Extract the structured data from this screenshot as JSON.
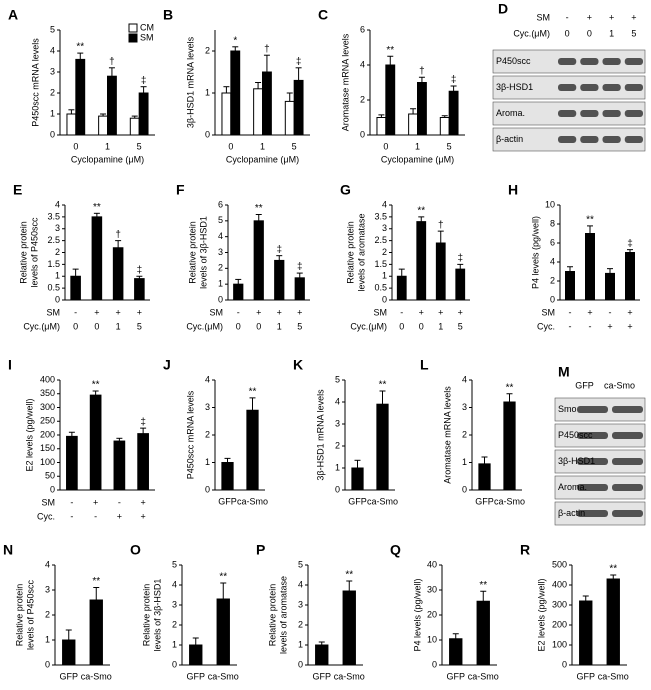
{
  "chart_data": [
    {
      "type": "bar",
      "panel": "A",
      "ylabel": [
        "P450scc mRNA levels"
      ],
      "xlabel": "Cyclopamine (μM)",
      "categories": [
        "0",
        "1",
        "5"
      ],
      "ylim": [
        0,
        5
      ],
      "yticks": [
        0,
        1,
        2,
        3,
        4,
        5
      ],
      "legend": "top-right",
      "series": [
        {
          "name": "CM",
          "color": "#ffffff",
          "values": [
            1.0,
            0.9,
            0.8
          ],
          "errors": [
            0.2,
            0.1,
            0.1
          ]
        },
        {
          "name": "SM",
          "color": "#000000",
          "values": [
            3.6,
            2.8,
            2.0
          ],
          "errors": [
            0.3,
            0.4,
            0.3
          ],
          "annotations": [
            "**",
            "†",
            "‡"
          ]
        }
      ]
    },
    {
      "type": "bar",
      "panel": "B",
      "ylabel": [
        "3β-HSD1 mRNA levels"
      ],
      "xlabel": "Cyclopamine (μM)",
      "categories": [
        "0",
        "1",
        "5"
      ],
      "ylim": [
        0,
        2.5
      ],
      "yticks": [
        0,
        1,
        2
      ],
      "series": [
        {
          "color": "#ffffff",
          "values": [
            1.0,
            1.1,
            0.8
          ],
          "errors": [
            0.15,
            0.15,
            0.2
          ]
        },
        {
          "color": "#000000",
          "values": [
            2.0,
            1.5,
            1.3
          ],
          "errors": [
            0.1,
            0.4,
            0.3
          ],
          "annotations": [
            "*",
            "†",
            "‡"
          ]
        }
      ]
    },
    {
      "type": "bar",
      "panel": "C",
      "ylabel": [
        "Aromatase mRNA levels"
      ],
      "xlabel": "Cyclopamine (μM)",
      "categories": [
        "0",
        "1",
        "5"
      ],
      "ylim": [
        0,
        6
      ],
      "yticks": [
        0,
        2,
        4,
        6
      ],
      "series": [
        {
          "color": "#ffffff",
          "values": [
            1.0,
            1.2,
            1.0
          ],
          "errors": [
            0.15,
            0.3,
            0.1
          ]
        },
        {
          "color": "#000000",
          "values": [
            4.0,
            3.0,
            2.5
          ],
          "errors": [
            0.5,
            0.3,
            0.3
          ],
          "annotations": [
            "**",
            "†",
            "‡"
          ]
        }
      ]
    },
    {
      "type": "bar",
      "panel": "E",
      "ylabel": [
        "Relative protein",
        "levels of P450scc"
      ],
      "ylim": [
        0,
        4
      ],
      "yticks": [
        0,
        0.5,
        1,
        1.5,
        2,
        2.5,
        3,
        3.5,
        4
      ],
      "color": "#000000",
      "category_rows": [
        {
          "name": "SM",
          "labels": [
            "-",
            "+",
            "+",
            "+"
          ]
        },
        {
          "name": "Cyc.(μM)",
          "labels": [
            "0",
            "0",
            "1",
            "5"
          ]
        }
      ],
      "values": [
        1.0,
        3.5,
        2.2,
        0.9
      ],
      "errors": [
        0.3,
        0.15,
        0.3,
        0.1
      ],
      "annotations": [
        null,
        "**",
        "†",
        "‡"
      ]
    },
    {
      "type": "bar",
      "panel": "F",
      "ylabel": [
        "Relative protein",
        "levels of 3β-HSD1"
      ],
      "ylim": [
        0,
        6
      ],
      "yticks": [
        0,
        1,
        2,
        3,
        4,
        5,
        6
      ],
      "color": "#000000",
      "category_rows": [
        {
          "name": "SM",
          "labels": [
            "-",
            "+",
            "+",
            "+"
          ]
        },
        {
          "name": "Cyc.(μM)",
          "labels": [
            "0",
            "0",
            "1",
            "5"
          ]
        }
      ],
      "values": [
        1.0,
        5.0,
        2.5,
        1.4
      ],
      "errors": [
        0.3,
        0.4,
        0.3,
        0.3
      ],
      "annotations": [
        null,
        "**",
        "‡",
        "‡"
      ]
    },
    {
      "type": "bar",
      "panel": "G",
      "ylabel": [
        "Relative protein",
        "levels of aromatase"
      ],
      "ylim": [
        0,
        4
      ],
      "yticks": [
        0,
        0.5,
        1,
        1.5,
        2,
        2.5,
        3,
        3.5,
        4
      ],
      "color": "#000000",
      "category_rows": [
        {
          "name": "SM",
          "labels": [
            "-",
            "+",
            "+",
            "+"
          ]
        },
        {
          "name": "Cyc.(μM)",
          "labels": [
            "0",
            "0",
            "1",
            "5"
          ]
        }
      ],
      "values": [
        1.0,
        3.3,
        2.4,
        1.3
      ],
      "errors": [
        0.3,
        0.2,
        0.5,
        0.2
      ],
      "annotations": [
        null,
        "**",
        "†",
        "‡"
      ]
    },
    {
      "type": "bar",
      "panel": "H",
      "ylabel": [
        "P4 levels (pg/well)"
      ],
      "ylim": [
        0,
        10
      ],
      "yticks": [
        0,
        2,
        4,
        6,
        8,
        10
      ],
      "color": "#000000",
      "category_rows": [
        {
          "name": "SM",
          "labels": [
            "-",
            "+",
            "-",
            "+"
          ]
        },
        {
          "name": "Cyc.",
          "labels": [
            "-",
            "-",
            "+",
            "+"
          ]
        }
      ],
      "values": [
        3.0,
        7.0,
        2.8,
        5.0
      ],
      "errors": [
        0.5,
        0.8,
        0.5,
        0.3
      ],
      "annotations": [
        null,
        "**",
        null,
        "‡"
      ]
    },
    {
      "type": "bar",
      "panel": "I",
      "ylabel": [
        "E2 levels (pg/well)"
      ],
      "ylim": [
        0,
        400
      ],
      "yticks": [
        0,
        50,
        100,
        150,
        200,
        250,
        300,
        350,
        400
      ],
      "color": "#000000",
      "category_rows": [
        {
          "name": "SM",
          "labels": [
            "-",
            "+",
            "-",
            "+"
          ]
        },
        {
          "name": "Cyc.",
          "labels": [
            "-",
            "-",
            "+",
            "+"
          ]
        }
      ],
      "values": [
        195,
        345,
        178,
        205
      ],
      "errors": [
        15,
        15,
        10,
        20
      ],
      "annotations": [
        null,
        "**",
        null,
        "‡"
      ]
    },
    {
      "type": "bar",
      "panel": "J",
      "ylabel": [
        "P450scc mRNA levels"
      ],
      "ylim": [
        0,
        4
      ],
      "yticks": [
        0,
        1,
        2,
        3,
        4
      ],
      "color": "#000000",
      "categories": [
        "GFP",
        "ca-Smo"
      ],
      "values": [
        1.0,
        2.9
      ],
      "errors": [
        0.15,
        0.45
      ],
      "annotations": [
        null,
        "**"
      ]
    },
    {
      "type": "bar",
      "panel": "K",
      "ylabel": [
        "3β-HSD1 mRNA levels"
      ],
      "ylim": [
        0,
        5
      ],
      "yticks": [
        0,
        1,
        2,
        3,
        4,
        5
      ],
      "color": "#000000",
      "categories": [
        "GFP",
        "ca-Smo"
      ],
      "values": [
        1.0,
        3.9
      ],
      "errors": [
        0.35,
        0.6
      ],
      "annotations": [
        null,
        "**"
      ]
    },
    {
      "type": "bar",
      "panel": "L",
      "ylabel": [
        "Aromatase mRNA levels"
      ],
      "ylim": [
        0,
        4
      ],
      "yticks": [
        0,
        1,
        2,
        3,
        4
      ],
      "color": "#000000",
      "categories": [
        "GFP",
        "ca-Smo"
      ],
      "values": [
        0.95,
        3.2
      ],
      "errors": [
        0.25,
        0.3
      ],
      "annotations": [
        null,
        "**"
      ]
    },
    {
      "type": "bar",
      "panel": "N",
      "ylabel": [
        "Relative protein",
        "levels of P450scc"
      ],
      "ylim": [
        0,
        4
      ],
      "yticks": [
        0,
        1,
        2,
        3,
        4
      ],
      "color": "#000000",
      "categories": [
        "GFP",
        "ca-Smo"
      ],
      "values": [
        1.0,
        2.6
      ],
      "errors": [
        0.4,
        0.5
      ],
      "annotations": [
        null,
        "**"
      ]
    },
    {
      "type": "bar",
      "panel": "O",
      "ylabel": [
        "Relative protein",
        "levels of 3β-HSD1"
      ],
      "ylim": [
        0,
        5
      ],
      "yticks": [
        0,
        1,
        2,
        3,
        4,
        5
      ],
      "color": "#000000",
      "categories": [
        "GFP",
        "ca-Smo"
      ],
      "values": [
        1.0,
        3.3
      ],
      "errors": [
        0.35,
        0.8
      ],
      "annotations": [
        null,
        "**"
      ]
    },
    {
      "type": "bar",
      "panel": "P",
      "ylabel": [
        "Relative protein",
        "levels of aromatase"
      ],
      "ylim": [
        0,
        5
      ],
      "yticks": [
        0,
        1,
        2,
        3,
        4,
        5
      ],
      "color": "#000000",
      "categories": [
        "GFP",
        "ca-Smo"
      ],
      "values": [
        1.0,
        3.7
      ],
      "errors": [
        0.15,
        0.5
      ],
      "annotations": [
        null,
        "**"
      ]
    },
    {
      "type": "bar",
      "panel": "Q",
      "ylabel": [
        "P4 levels (pg/well)"
      ],
      "ylim": [
        0,
        40
      ],
      "yticks": [
        0,
        10,
        20,
        30,
        40
      ],
      "color": "#000000",
      "categories": [
        "GFP",
        "ca-Smo"
      ],
      "values": [
        10.5,
        25.5
      ],
      "errors": [
        2,
        4
      ],
      "annotations": [
        null,
        "**"
      ]
    },
    {
      "type": "bar",
      "panel": "R",
      "ylabel": [
        "E2 levels (pg/well)"
      ],
      "ylim": [
        0,
        500
      ],
      "yticks": [
        0,
        100,
        200,
        300,
        400,
        500
      ],
      "color": "#000000",
      "categories": [
        "GFP",
        "ca-Smo"
      ],
      "values": [
        320,
        430
      ],
      "errors": [
        25,
        20
      ],
      "annotations": [
        null,
        "**"
      ]
    }
  ],
  "blots": [
    {
      "panel": "D",
      "header_rows": [
        {
          "name": "SM",
          "labels": [
            "-",
            "+",
            "+",
            "+"
          ]
        },
        {
          "name": "Cyc.(μM)",
          "labels": [
            "0",
            "0",
            "1",
            "5"
          ]
        }
      ],
      "rows": [
        "P450scc",
        "3β-HSD1",
        "Aroma.",
        "β-actin"
      ]
    },
    {
      "panel": "M",
      "header_rows": [
        {
          "labels": [
            "GFP",
            "ca-Smo"
          ]
        }
      ],
      "rows": [
        "Smo",
        "P450scc",
        "3β-HSD1",
        "Aroma.",
        "β-actin"
      ]
    }
  ]
}
